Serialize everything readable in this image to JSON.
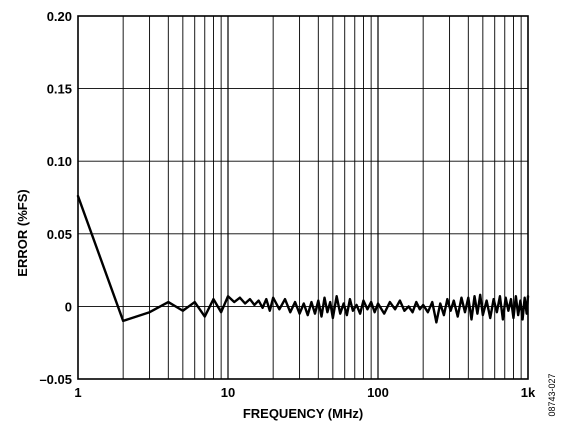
{
  "chart_data": {
    "type": "line",
    "title": "",
    "xlabel": "FREQUENCY (MHz)",
    "ylabel": "ERROR (%FS)",
    "x_scale": "log",
    "xlim": [
      1,
      1000
    ],
    "ylim": [
      -0.05,
      0.2
    ],
    "x_ticks": [
      {
        "value": 1,
        "label": "1"
      },
      {
        "value": 10,
        "label": "10"
      },
      {
        "value": 100,
        "label": "100"
      },
      {
        "value": 1000,
        "label": "1k"
      }
    ],
    "y_ticks": [
      {
        "value": 0.2,
        "label": "0.20"
      },
      {
        "value": 0.15,
        "label": "0.15"
      },
      {
        "value": 0.1,
        "label": "0.10"
      },
      {
        "value": 0.05,
        "label": "0.05"
      },
      {
        "value": 0,
        "label": "0"
      },
      {
        "value": -0.05,
        "label": "–0.05"
      }
    ],
    "grid": true,
    "legend": "none",
    "figure_id": "08743-027",
    "line_color": "#000000",
    "series": [
      {
        "x": [
          1,
          2,
          3,
          4,
          5,
          6,
          7,
          8,
          9,
          10,
          11,
          12,
          13,
          14,
          15,
          16,
          17,
          18,
          19,
          20,
          22,
          24,
          26,
          28,
          30,
          32,
          34,
          36,
          38,
          40,
          42,
          44,
          46,
          48,
          50,
          53,
          56,
          59,
          62,
          65,
          68,
          72,
          76,
          80,
          85,
          90,
          95,
          100,
          110,
          120,
          130,
          140,
          150,
          160,
          170,
          180,
          190,
          200,
          215,
          230,
          245,
          260,
          275,
          290,
          305,
          320,
          340,
          360,
          380,
          400,
          420,
          440,
          460,
          480,
          500,
          530,
          560,
          590,
          620,
          650,
          680,
          710,
          740,
          770,
          800,
          830,
          860,
          890,
          920,
          950,
          980,
          1000
        ],
        "values": [
          0.076,
          -0.01,
          -0.004,
          0.003,
          -0.003,
          0.003,
          -0.007,
          0.005,
          -0.004,
          0.007,
          0.003,
          0.006,
          0.002,
          0.005,
          0.001,
          0.004,
          -0.001,
          0.005,
          -0.003,
          0.006,
          -0.002,
          0.005,
          -0.004,
          0.003,
          -0.005,
          0.002,
          -0.006,
          0.003,
          -0.005,
          0.004,
          -0.007,
          0.006,
          -0.004,
          0.003,
          -0.008,
          0.007,
          -0.005,
          0.002,
          -0.006,
          0.005,
          -0.003,
          0.001,
          -0.005,
          0.004,
          -0.002,
          0.003,
          -0.004,
          0.002,
          -0.005,
          0.003,
          -0.002,
          0.004,
          -0.003,
          0.0,
          -0.004,
          0.003,
          -0.002,
          0.001,
          -0.004,
          0.003,
          -0.011,
          0.002,
          -0.006,
          0.005,
          -0.003,
          0.004,
          -0.007,
          0.006,
          -0.004,
          0.006,
          -0.009,
          0.007,
          -0.005,
          0.008,
          -0.006,
          0.004,
          -0.008,
          0.005,
          -0.004,
          0.007,
          -0.009,
          0.006,
          -0.003,
          0.005,
          -0.008,
          0.007,
          -0.006,
          0.004,
          -0.009,
          0.006,
          -0.005,
          0.007
        ]
      }
    ]
  }
}
